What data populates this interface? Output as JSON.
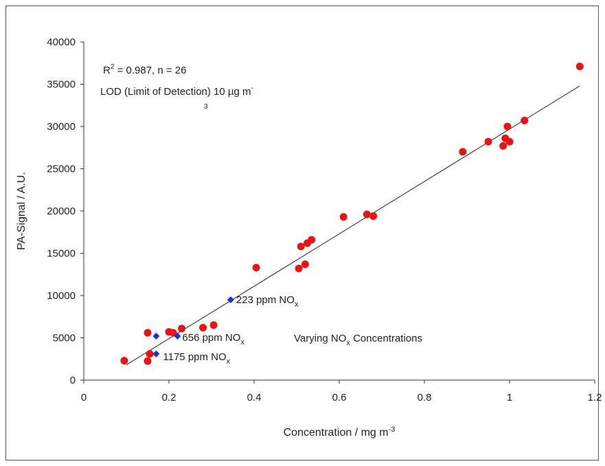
{
  "chart_data": {
    "type": "scatter",
    "xlabel": "Concentration / mg m",
    "xlabel_sup": "-3",
    "ylabel": "PA-Signal / A.U.",
    "xlim": [
      0,
      1.2
    ],
    "ylim": [
      0,
      40000
    ],
    "x_ticks": [
      "0",
      "0.2",
      "0.4",
      "0.6",
      "0.8",
      "1",
      "1.2"
    ],
    "y_ticks": [
      "0",
      "5000",
      "10000",
      "15000",
      "20000",
      "25000",
      "30000",
      "35000",
      "40000"
    ],
    "grid": false,
    "annotations": {
      "r2_prefix": "R",
      "r2_sup": "2",
      "r2_rest": " = 0.987, n = 26",
      "lod_text": "LOD (Limit of Detection) 10 µg m",
      "lod_sup": "-",
      "lod_sub": "3",
      "varying_prefix": "Varying NO",
      "varying_sub": "x",
      "varying_suffix": " Concentrations"
    },
    "series": [
      {
        "color": "#ee1111",
        "marker": "circle",
        "points": [
          [
            0.095,
            2300
          ],
          [
            0.15,
            2250
          ],
          [
            0.155,
            3100
          ],
          [
            0.15,
            5600
          ],
          [
            0.2,
            5700
          ],
          [
            0.21,
            5600
          ],
          [
            0.23,
            6100
          ],
          [
            0.28,
            6200
          ],
          [
            0.305,
            6500
          ],
          [
            0.405,
            13300
          ],
          [
            0.505,
            13200
          ],
          [
            0.51,
            15800
          ],
          [
            0.52,
            13700
          ],
          [
            0.525,
            16200
          ],
          [
            0.535,
            16600
          ],
          [
            0.61,
            19300
          ],
          [
            0.665,
            19600
          ],
          [
            0.68,
            19400
          ],
          [
            0.89,
            27000
          ],
          [
            0.95,
            28200
          ],
          [
            0.985,
            27700
          ],
          [
            0.99,
            28600
          ],
          [
            0.995,
            30000
          ],
          [
            1.0,
            28200
          ],
          [
            1.035,
            30700
          ],
          [
            1.165,
            37100
          ]
        ]
      },
      {
        "color": "#1a2fe0",
        "marker": "diamond",
        "points": [
          [
            0.345,
            9500
          ],
          [
            0.17,
            5200
          ],
          [
            0.22,
            5200
          ],
          [
            0.17,
            3100
          ]
        ],
        "labels": [
          {
            "main": "223 ppm NO",
            "sub": "x"
          },
          {
            "main": "656 ppm NO",
            "sub": "x"
          },
          {
            "main": "1175 ppm NO",
            "sub": "x"
          }
        ]
      }
    ],
    "trendline": {
      "x": [
        0.1,
        1.165
      ],
      "y": [
        1800,
        34800
      ]
    }
  }
}
